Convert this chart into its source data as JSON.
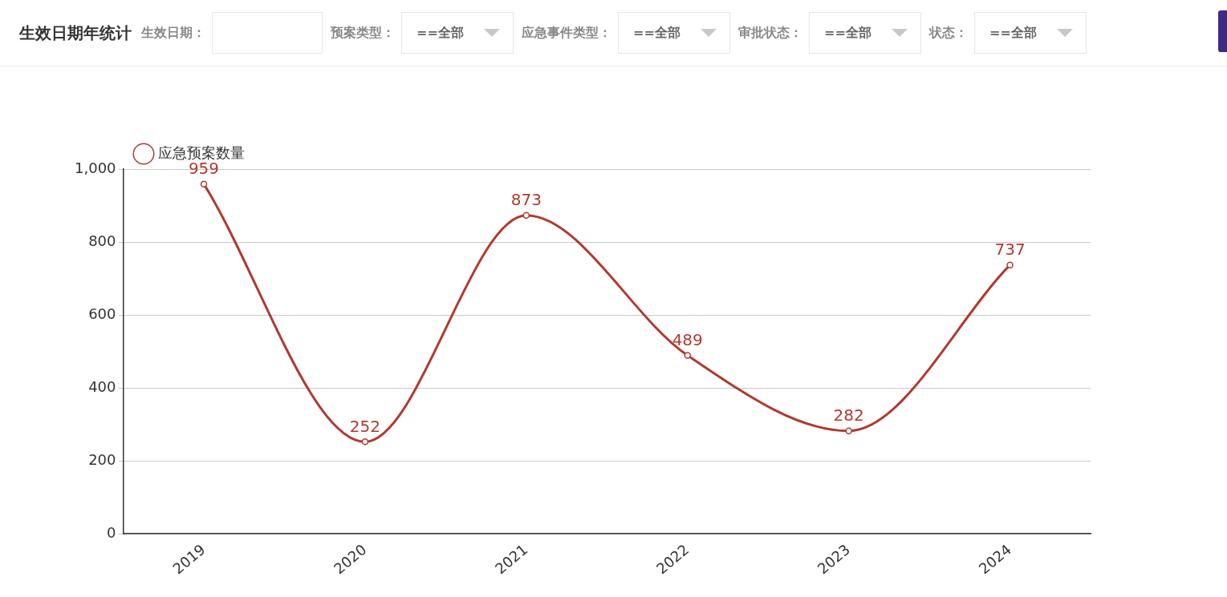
{
  "chart_data": {
    "type": "line",
    "title": "生效日期年统计",
    "annotations": [
      "生效日期：",
      "预案类型：",
      "==全部",
      "应急事件类型：",
      "==全部",
      "审批状态：",
      "==全部",
      "状态：",
      "==全部"
    ],
    "categories": [
      "2019",
      "2020",
      "2021",
      "2022",
      "2023",
      "2024"
    ],
    "series": [
      {
        "name": "应急预案数量",
        "color": "#b03a2e",
        "values": [
          959,
          252,
          873,
          489,
          282,
          737
        ]
      }
    ],
    "ylim": [
      0,
      1000
    ],
    "yticks": [
      0,
      200,
      400,
      600,
      800,
      {
        "value": 1000,
        "label": "1,000"
      }
    ],
    "grid": "y",
    "legend": "top left",
    "marker": "circle",
    "line_style": "solid",
    "data_labels": true
  }
}
